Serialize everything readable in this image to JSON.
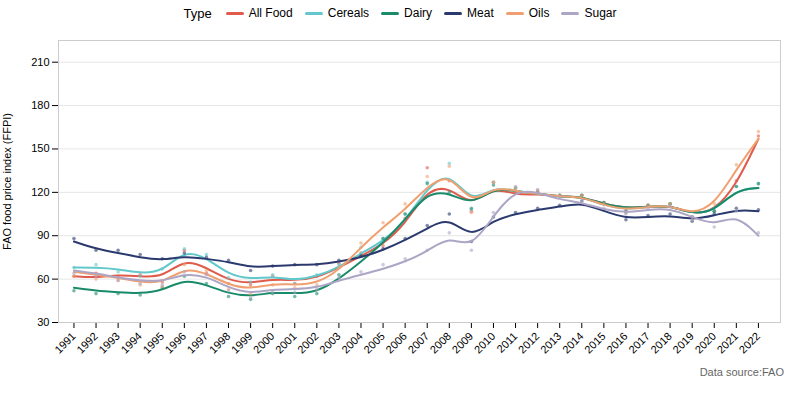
{
  "chart_data": {
    "type": "line",
    "legend_title": "Type",
    "ylabel": "FAO food price index (FFPI)",
    "caption": "Data source:FAO",
    "x": [
      1991,
      1992,
      1993,
      1994,
      1995,
      1996,
      1997,
      1998,
      1999,
      2000,
      2001,
      2002,
      2003,
      2004,
      2005,
      2006,
      2007,
      2008,
      2009,
      2010,
      2011,
      2012,
      2013,
      2014,
      2015,
      2016,
      2017,
      2018,
      2019,
      2020,
      2021,
      2022
    ],
    "series": [
      {
        "name": "All Food",
        "color": "#E05B4B",
        "values": [
          62,
          61,
          63,
          62,
          61,
          74,
          68,
          59,
          57,
          60,
          59,
          61,
          68,
          76,
          84,
          98,
          122,
          124,
          110,
          124,
          118,
          119,
          117,
          117,
          112,
          109,
          110,
          111,
          105,
          107,
          125,
          157
        ],
        "points": [
          62,
          64,
          61,
          63,
          58,
          80,
          64,
          57,
          56,
          62,
          57,
          62,
          71,
          78,
          83,
          102,
          137,
          128,
          107,
          127,
          120,
          121,
          118,
          118,
          113,
          107,
          111,
          112,
          103,
          107,
          128,
          159
        ]
      },
      {
        "name": "Cereals",
        "color": "#62C8CC",
        "values": [
          68,
          68,
          67,
          64,
          65,
          80,
          75,
          63,
          60,
          62,
          59,
          62,
          68,
          78,
          86,
          100,
          123,
          135,
          112,
          124,
          121,
          119,
          117,
          117,
          111,
          108,
          110,
          111,
          105,
          107,
          122,
          123
        ],
        "points": [
          68,
          70,
          65,
          62,
          67,
          81,
          77,
          61,
          58,
          63,
          57,
          63,
          70,
          82,
          88,
          105,
          127,
          140,
          108,
          127,
          123,
          120,
          118,
          118,
          112,
          106,
          111,
          112,
          103,
          107,
          124,
          126
        ]
      },
      {
        "name": "Dairy",
        "color": "#1A8B6A",
        "values": [
          54,
          52,
          51,
          50,
          52,
          60,
          56,
          50,
          48,
          51,
          50,
          51,
          60,
          72,
          85,
          101,
          120,
          120,
          111,
          123,
          121,
          119,
          117,
          117,
          112,
          109,
          110,
          111,
          105,
          107,
          122,
          123
        ],
        "points": [
          52,
          50,
          50,
          49,
          54,
          62,
          57,
          48,
          46,
          50,
          48,
          50,
          63,
          76,
          88,
          105,
          126,
          120,
          109,
          125,
          123,
          120,
          118,
          118,
          113,
          107,
          111,
          112,
          103,
          107,
          124,
          126
        ]
      },
      {
        "name": "Meat",
        "color": "#2B3A6E",
        "values": [
          86,
          81,
          78,
          75,
          73,
          76,
          74,
          72,
          68,
          69,
          70,
          70,
          72,
          75,
          80,
          87,
          95,
          103,
          88,
          101,
          105,
          108,
          110,
          113,
          107,
          102,
          103,
          104,
          101,
          104,
          108,
          107
        ],
        "points": [
          88,
          80,
          80,
          77,
          74,
          78,
          75,
          73,
          66,
          69,
          70,
          70,
          73,
          76,
          81,
          88,
          97,
          105,
          86,
          103,
          106,
          109,
          111,
          114,
          108,
          101,
          104,
          105,
          100,
          105,
          109,
          108
        ]
      },
      {
        "name": "Oils",
        "color": "#F0A070",
        "values": [
          65,
          63,
          61,
          58,
          57,
          68,
          64,
          56,
          53,
          57,
          56,
          57,
          66,
          82,
          96,
          108,
          124,
          134,
          111,
          124,
          121,
          119,
          117,
          117,
          111,
          108,
          110,
          111,
          105,
          111,
          136,
          157
        ],
        "points": [
          62,
          60,
          59,
          56,
          55,
          70,
          66,
          53,
          50,
          56,
          54,
          56,
          68,
          85,
          99,
          112,
          131,
          138,
          106,
          127,
          123,
          120,
          118,
          118,
          112,
          106,
          111,
          112,
          103,
          112,
          139,
          162
        ]
      },
      {
        "name": "Sugar",
        "color": "#ADA5C5",
        "values": [
          66,
          64,
          61,
          59,
          58,
          64,
          62,
          54,
          50,
          53,
          53,
          54,
          59,
          63,
          67,
          72,
          79,
          90,
          81,
          104,
          122,
          120,
          115,
          113,
          108,
          106,
          108,
          109,
          103,
          97,
          105,
          90
        ],
        "points": [
          64,
          62,
          59,
          57,
          56,
          65,
          63,
          52,
          47,
          51,
          51,
          53,
          61,
          65,
          70,
          74,
          80,
          92,
          80,
          106,
          124,
          122,
          117,
          114,
          109,
          105,
          109,
          110,
          101,
          96,
          107,
          92
        ]
      }
    ],
    "xlim": [
      1990.3,
      2023.0
    ],
    "xticks": [
      1991,
      1992,
      1993,
      1994,
      1995,
      1996,
      1997,
      1998,
      1999,
      2000,
      2001,
      2002,
      2003,
      2004,
      2005,
      2006,
      2007,
      2008,
      2009,
      2010,
      2011,
      2012,
      2013,
      2014,
      2015,
      2016,
      2017,
      2018,
      2019,
      2020,
      2021,
      2022
    ],
    "ylim": [
      30,
      225
    ],
    "yticks": [
      30,
      60,
      90,
      120,
      150,
      180,
      210
    ],
    "grid": "y",
    "legend": "top",
    "marker": "dot"
  }
}
